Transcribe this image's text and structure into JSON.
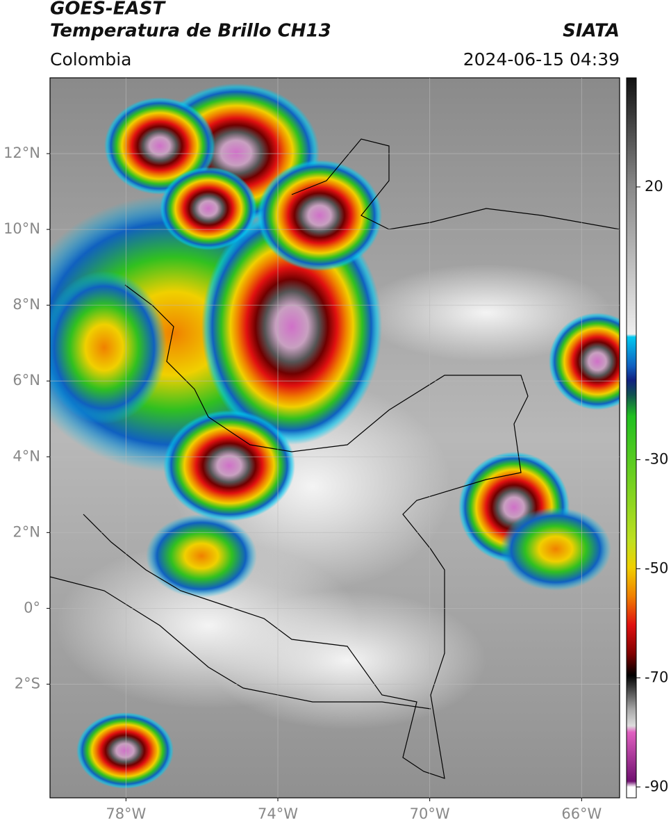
{
  "header": {
    "title": "GOES-EAST",
    "subtitle": "Temperatura de Brillo CH13",
    "source": "SIATA",
    "region": "Colombia",
    "datetime": "2024-06-15 04:39"
  },
  "map": {
    "lonlim": [
      -80,
      -65
    ],
    "latlim": [
      -5,
      14
    ],
    "lonticks": [
      {
        "value": -78,
        "label": "78°W"
      },
      {
        "value": -74,
        "label": "74°W"
      },
      {
        "value": -70,
        "label": "70°W"
      },
      {
        "value": -66,
        "label": "66°W"
      }
    ],
    "latticks": [
      {
        "value": 12,
        "label": "12°N"
      },
      {
        "value": 10,
        "label": "10°N"
      },
      {
        "value": 8,
        "label": "8°N"
      },
      {
        "value": 6,
        "label": "6°N"
      },
      {
        "value": 4,
        "label": "4°N"
      },
      {
        "value": 2,
        "label": "2°N"
      },
      {
        "value": 0,
        "label": "0°"
      },
      {
        "value": -2,
        "label": "2°S"
      }
    ]
  },
  "colorbar": {
    "lim": [
      40,
      -92
    ],
    "ticks": [
      20,
      -30,
      -50,
      -70,
      -90
    ]
  }
}
